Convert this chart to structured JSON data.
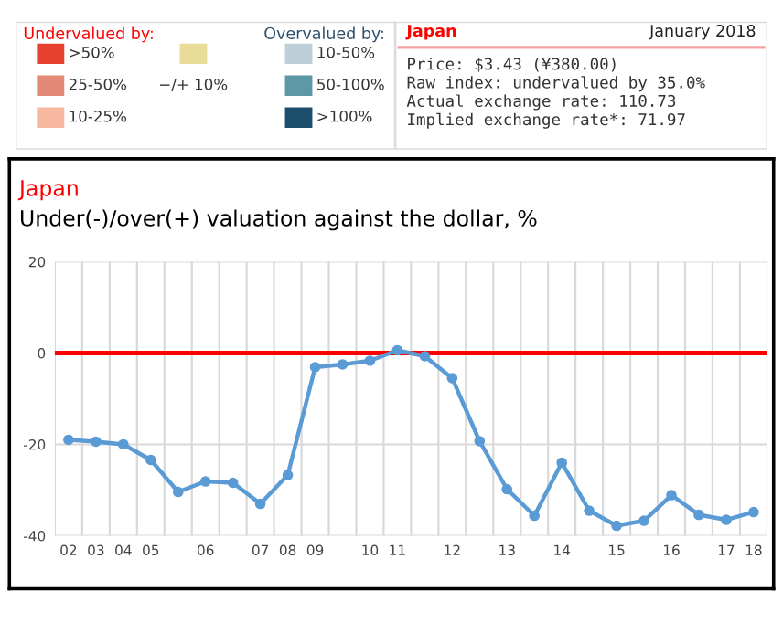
{
  "chart_data": [
    {
      "type": "other",
      "categories": [
        ">50%",
        "25-50%",
        "10-25%",
        "−/+ 10%",
        "10-50%",
        "50-100%",
        ">100%"
      ],
      "colors": [
        "#e8412f",
        "#e38a76",
        "#f8b79f",
        "#e8dc98",
        "#bccfd8",
        "#5e97a5",
        "#1c4f6b"
      ],
      "annotations": [
        "Undervalued by:",
        "Overvalued by:",
        "Japan",
        "January 2018",
        "Price: $3.43 (¥380.00)",
        "Raw index: undervalued by 35.0%",
        "Actual exchange rate: 110.73",
        "Implied exchange rate*: 71.97"
      ]
    },
    {
      "type": "line",
      "title": "Japan",
      "subtitle": "Under(-)/over(+) valuation against the dollar, %",
      "categories": [
        "02",
        "03",
        "04",
        "05",
        null,
        "06",
        null,
        "07",
        "08",
        "09",
        null,
        "10",
        "11",
        null,
        "12",
        null,
        "13",
        null,
        "14",
        null,
        "15",
        null,
        "16",
        null,
        "17",
        "18"
      ],
      "series": [
        {
          "color": "#5b9bd5",
          "values": [
            -19.0,
            -19.4,
            -20.0,
            -23.4,
            -30.4,
            -28.1,
            -28.4,
            -33.0,
            -26.7,
            -3.1,
            -2.5,
            -1.7,
            0.6,
            -0.7,
            -5.5,
            -19.3,
            -29.8,
            -35.6,
            -24.0,
            -34.5,
            -37.8,
            -36.7,
            -31.1,
            -35.4,
            -36.5,
            -34.8
          ]
        }
      ],
      "ylim": [
        -40,
        20
      ],
      "yticks": [
        -40,
        -20,
        0,
        20
      ],
      "grid": true,
      "marker": "circle",
      "line_style": "solid",
      "ref_lines": [
        {
          "axis": "y",
          "value": 0,
          "color": "#ff0000"
        }
      ]
    }
  ]
}
